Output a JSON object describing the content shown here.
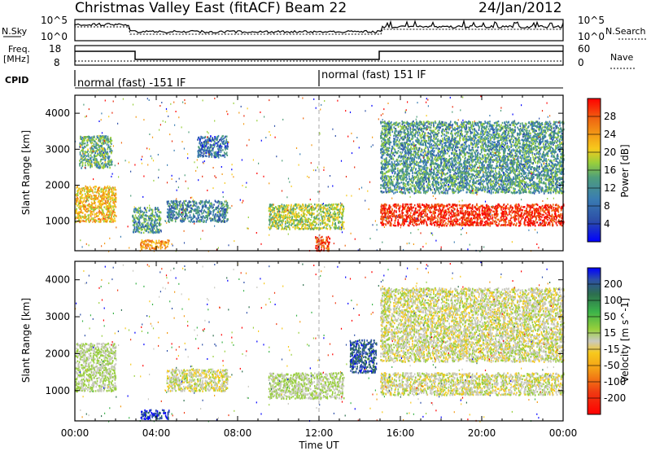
{
  "header": {
    "station": "Christmas Valley East (fitACF)",
    "beam": "Beam 22",
    "date": "24/Jan/2012"
  },
  "noise_panel": {
    "left_label": "N.Sky",
    "left_ticks": [
      "10^5",
      "10^0"
    ],
    "right_label": "N.Search",
    "right_ticks": [
      "10^5",
      "10^0"
    ]
  },
  "freq_panel": {
    "left_label_line1": "Freq.",
    "left_label_line2": "[MHz]",
    "left_ticks": [
      "18",
      "8"
    ],
    "right_label": "Nave",
    "right_ticks": [
      "60",
      "0"
    ]
  },
  "cpid": {
    "label": "CPID",
    "segments": [
      {
        "text": "normal (fast) -151 IF",
        "start_hour": 0,
        "end_hour": 12
      },
      {
        "text": "normal (fast) 151 IF",
        "start_hour": 12,
        "end_hour": 24
      }
    ]
  },
  "axes": {
    "ylabel": "Slant Range [km]",
    "xlabel": "Time UT",
    "yticks": [
      "1000",
      "2000",
      "3000",
      "4000"
    ],
    "xticks": [
      "00:00",
      "04:00",
      "08:00",
      "12:00",
      "16:00",
      "20:00",
      "00:00"
    ]
  },
  "chart_data": [
    {
      "type": "heatmap",
      "title": "",
      "xlabel": "Time UT",
      "ylabel": "Slant Range [km]",
      "xlim": [
        0,
        24
      ],
      "ylim": [
        180,
        4500
      ],
      "colorbar": {
        "label": "Power [dB]",
        "ticks": [
          "28",
          "24",
          "20",
          "16",
          "12",
          "8",
          "4"
        ],
        "colors": [
          "#0000ff",
          "#2d4fa8",
          "#3a7db2",
          "#4f9e7a",
          "#98cf3c",
          "#f7c91c",
          "#f39a16",
          "#ef6a12",
          "#e8280a",
          "#ff0000"
        ]
      },
      "echo_regions": [
        {
          "t0": 0.0,
          "t1": 2.0,
          "r0": 1000,
          "r1": 2000,
          "level": 0.6
        },
        {
          "t0": 0.2,
          "t1": 1.8,
          "r0": 2500,
          "r1": 3400,
          "level": 0.35
        },
        {
          "t0": 2.8,
          "t1": 4.2,
          "r0": 700,
          "r1": 1400,
          "level": 0.3
        },
        {
          "t0": 3.2,
          "t1": 4.6,
          "r0": 250,
          "r1": 500,
          "level": 0.7
        },
        {
          "t0": 4.5,
          "t1": 7.5,
          "r0": 1000,
          "r1": 1600,
          "level": 0.25
        },
        {
          "t0": 6.0,
          "t1": 7.5,
          "r0": 2800,
          "r1": 3400,
          "level": 0.2
        },
        {
          "t0": 9.5,
          "t1": 13.2,
          "r0": 800,
          "r1": 1500,
          "level": 0.45
        },
        {
          "t0": 11.8,
          "t1": 12.5,
          "r0": 200,
          "r1": 600,
          "level": 0.85
        },
        {
          "t0": 15.0,
          "t1": 24.0,
          "r0": 900,
          "r1": 1500,
          "level": 0.9
        },
        {
          "t0": 15.0,
          "t1": 24.0,
          "r0": 1800,
          "r1": 3800,
          "level": 0.3
        }
      ]
    },
    {
      "type": "heatmap",
      "title": "",
      "xlabel": "Time UT",
      "ylabel": "Slant Range [km]",
      "xlim": [
        0,
        24
      ],
      "ylim": [
        180,
        4500
      ],
      "colorbar": {
        "label": "Velocity [m s^-1]",
        "ticks": [
          "200",
          "100",
          "50",
          "15",
          "-15",
          "-50",
          "-100",
          "-200"
        ],
        "colors": [
          "#ff0000",
          "#ef3a12",
          "#f39a16",
          "#f7c91c",
          "#c9c9c0",
          "#98cf3c",
          "#3bb34a",
          "#2d6f4e",
          "#2d4fa8",
          "#0000ff"
        ]
      },
      "echo_regions": [
        {
          "t0": 0.0,
          "t1": 2.0,
          "r0": 1000,
          "r1": 2300,
          "level": 0.5
        },
        {
          "t0": 3.2,
          "t1": 4.6,
          "r0": 250,
          "r1": 500,
          "level": 0.9
        },
        {
          "t0": 4.5,
          "t1": 7.5,
          "r0": 1000,
          "r1": 1600,
          "level": 0.45
        },
        {
          "t0": 9.5,
          "t1": 13.2,
          "r0": 800,
          "r1": 1500,
          "level": 0.5
        },
        {
          "t0": 13.5,
          "t1": 14.8,
          "r0": 1500,
          "r1": 2400,
          "level": 0.85
        },
        {
          "t0": 15.0,
          "t1": 24.0,
          "r0": 900,
          "r1": 1500,
          "level": 0.45
        },
        {
          "t0": 15.0,
          "t1": 24.0,
          "r0": 1800,
          "r1": 3800,
          "level": 0.45
        }
      ]
    }
  ]
}
